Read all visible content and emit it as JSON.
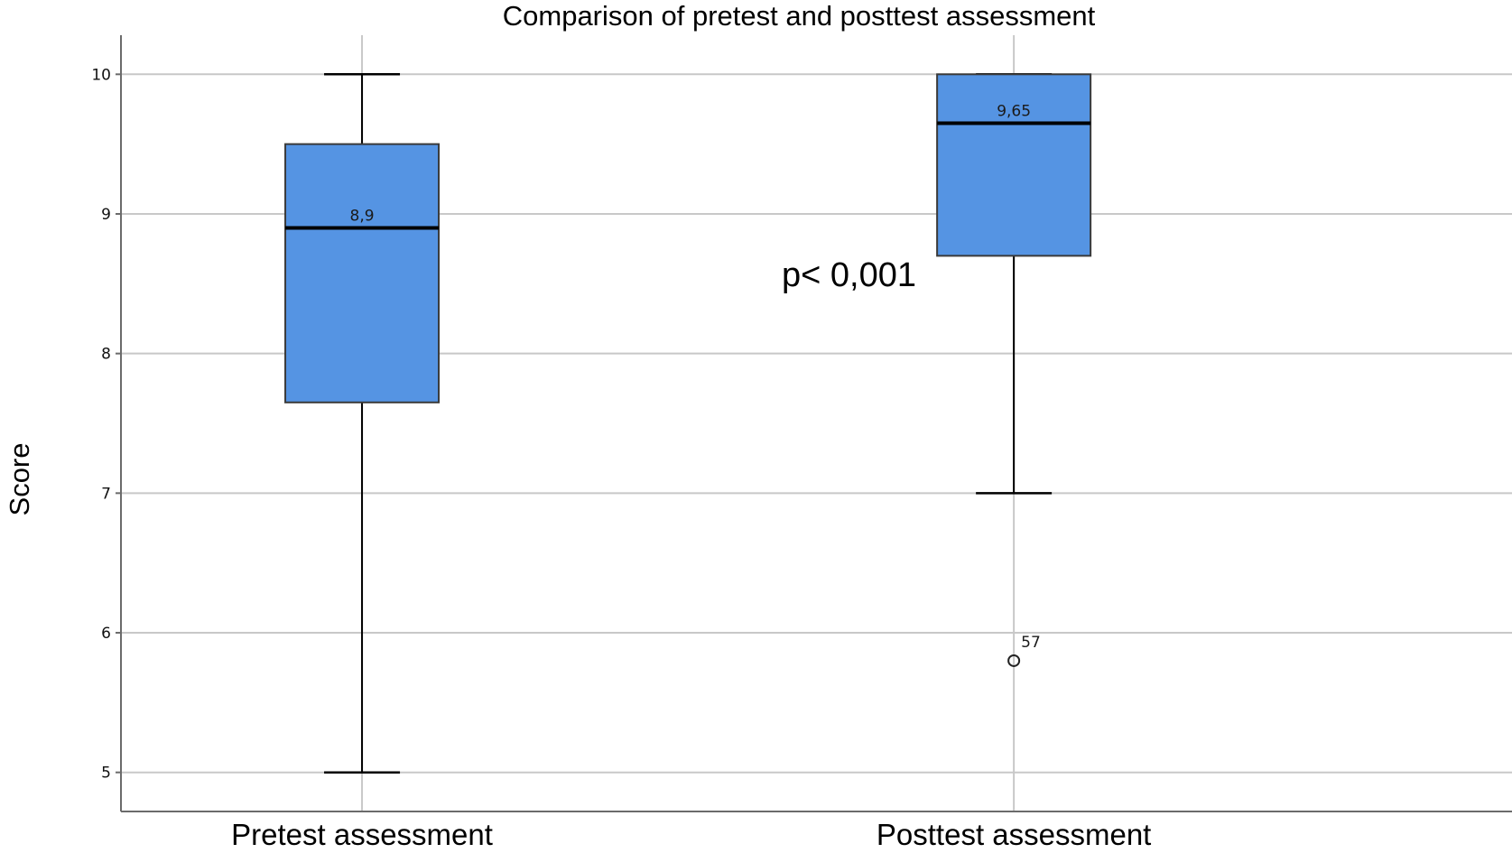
{
  "chart_data": {
    "type": "boxplot",
    "title": "Comparison of pretest and posttest assessment",
    "ylabel": "Score",
    "xlabel": "",
    "ylim": [
      4.72,
      10.28
    ],
    "yticks": [
      5,
      6,
      7,
      8,
      9,
      10
    ],
    "grid": true,
    "categories": [
      "Pretest assessment",
      "Posttest assessment"
    ],
    "boxes": [
      {
        "category": "Pretest assessment",
        "whisker_low": 5,
        "q1": 7.65,
        "median": 8.9,
        "q3": 9.5,
        "whisker_high": 10,
        "median_label": "8,9",
        "outliers": []
      },
      {
        "category": "Posttest assessment",
        "whisker_low": 7,
        "q1": 8.7,
        "median": 9.65,
        "q3": 10,
        "whisker_high": 10,
        "median_label": "9,65",
        "outliers": [
          {
            "value": 5.8,
            "label": "57"
          }
        ]
      }
    ],
    "annotations": [
      {
        "text": "p< 0,001"
      }
    ],
    "colors": {
      "box_fill": "#5594e3",
      "box_stroke": "#3a3a3a",
      "grid": "#c8c8c8",
      "axis": "#6b6b6b"
    }
  }
}
